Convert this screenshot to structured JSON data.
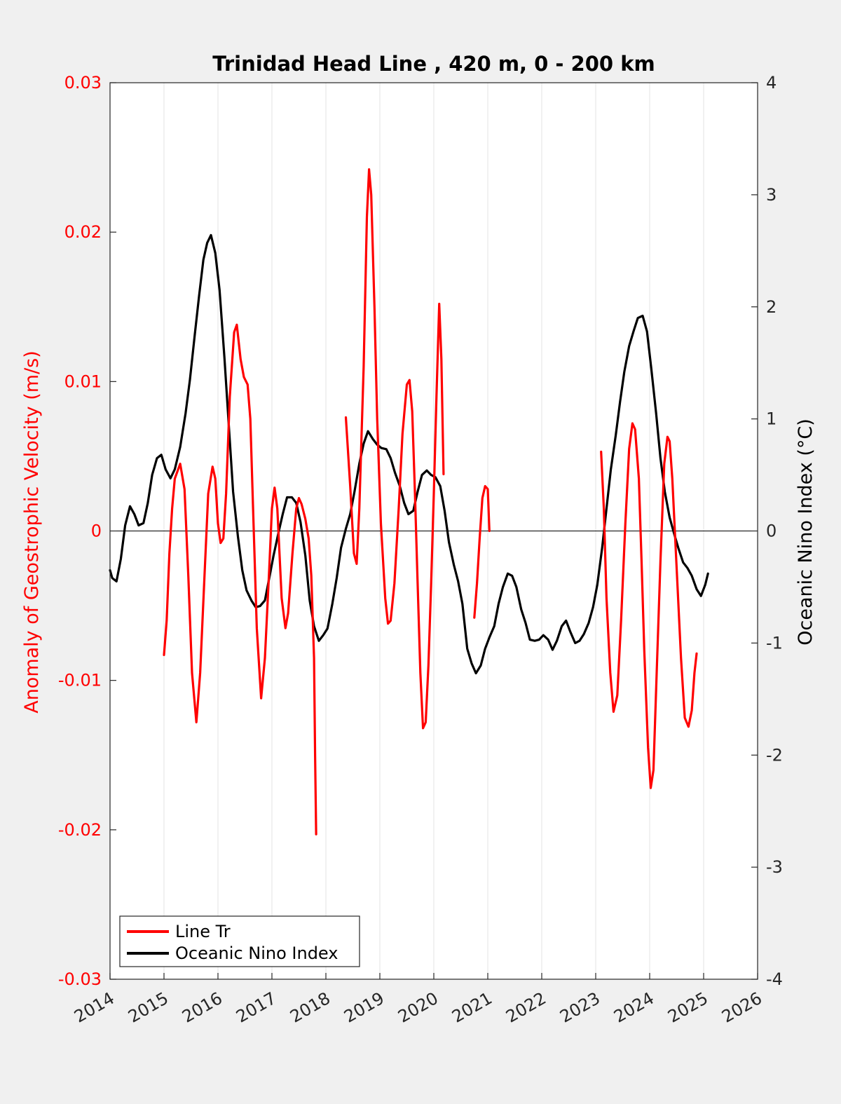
{
  "chart_data": {
    "type": "line",
    "title": "Trinidad Head Line , 420 m, 0 - 200 km",
    "xlim": [
      2014,
      2026
    ],
    "x_ticks": [
      "2014",
      "2015",
      "2016",
      "2017",
      "2018",
      "2019",
      "2020",
      "2021",
      "2022",
      "2023",
      "2024",
      "2025",
      "2026"
    ],
    "left_axis": {
      "label": "Anomaly of Geostrophic Velocity (m/s)",
      "color": "#ff0000",
      "ylim": [
        -0.03,
        0.03
      ],
      "ticks": [
        "-0.03",
        "-0.02",
        "-0.01",
        "0",
        "0.01",
        "0.02",
        "0.03"
      ]
    },
    "right_axis": {
      "label": "Oceanic Nino Index (°C)",
      "color": "#000000",
      "ylim": [
        -4,
        4
      ],
      "ticks": [
        "-4",
        "-3",
        "-2",
        "-1",
        "0",
        "1",
        "2",
        "3",
        "4"
      ]
    },
    "grid": "vertical",
    "legend": {
      "position": "bottom-left",
      "entries": [
        {
          "label": "Line Tr",
          "color": "#ff0000"
        },
        {
          "label": "Oceanic Nino Index",
          "color": "#000000"
        }
      ]
    },
    "series": [
      {
        "name": "Line Tr",
        "axis": "left",
        "color": "#ff0000",
        "segments": [
          [
            [
              2015.0,
              -0.0083
            ],
            [
              2015.05,
              -0.006
            ],
            [
              2015.1,
              -0.0015
            ],
            [
              2015.15,
              0.0015
            ],
            [
              2015.2,
              0.0035
            ],
            [
              2015.3,
              0.0045
            ],
            [
              2015.38,
              0.0028
            ],
            [
              2015.45,
              -0.003
            ],
            [
              2015.52,
              -0.0095
            ],
            [
              2015.6,
              -0.0128
            ],
            [
              2015.67,
              -0.0095
            ],
            [
              2015.75,
              -0.003
            ],
            [
              2015.82,
              0.0025
            ],
            [
              2015.9,
              0.0043
            ],
            [
              2015.95,
              0.0035
            ],
            [
              2016.0,
              0.0005
            ],
            [
              2016.05,
              -0.0008
            ],
            [
              2016.1,
              -0.0005
            ],
            [
              2016.15,
              0.0025
            ],
            [
              2016.22,
              0.009
            ],
            [
              2016.3,
              0.0133
            ],
            [
              2016.35,
              0.0138
            ],
            [
              2016.42,
              0.0115
            ],
            [
              2016.48,
              0.0103
            ],
            [
              2016.55,
              0.0098
            ],
            [
              2016.6,
              0.0075
            ],
            [
              2016.65,
              0.0015
            ],
            [
              2016.72,
              -0.0065
            ],
            [
              2016.8,
              -0.0112
            ],
            [
              2016.87,
              -0.0085
            ],
            [
              2016.95,
              -0.0025
            ],
            [
              2017.0,
              0.0015
            ],
            [
              2017.05,
              0.0029
            ],
            [
              2017.1,
              0.0015
            ],
            [
              2017.18,
              -0.0045
            ],
            [
              2017.25,
              -0.0065
            ],
            [
              2017.3,
              -0.0055
            ],
            [
              2017.38,
              -0.0015
            ],
            [
              2017.45,
              0.0015
            ],
            [
              2017.5,
              0.0022
            ],
            [
              2017.55,
              0.0018
            ],
            [
              2017.62,
              0.0008
            ],
            [
              2017.68,
              -0.0005
            ],
            [
              2017.73,
              -0.003
            ],
            [
              2017.78,
              -0.0085
            ],
            [
              2017.8,
              -0.015
            ],
            [
              2017.82,
              -0.0203
            ]
          ],
          [
            [
              2018.37,
              0.0076
            ],
            [
              2018.45,
              0.003
            ],
            [
              2018.52,
              -0.0015
            ],
            [
              2018.57,
              -0.0022
            ],
            [
              2018.62,
              0.0015
            ],
            [
              2018.7,
              0.011
            ],
            [
              2018.76,
              0.021
            ],
            [
              2018.8,
              0.0242
            ],
            [
              2018.84,
              0.0225
            ],
            [
              2018.9,
              0.015
            ],
            [
              2018.95,
              0.0075
            ],
            [
              2019.02,
              0.0005
            ],
            [
              2019.1,
              -0.0045
            ],
            [
              2019.15,
              -0.0062
            ],
            [
              2019.2,
              -0.006
            ],
            [
              2019.27,
              -0.0035
            ],
            [
              2019.35,
              0.0015
            ],
            [
              2019.42,
              0.0065
            ],
            [
              2019.5,
              0.0098
            ],
            [
              2019.55,
              0.0101
            ],
            [
              2019.6,
              0.008
            ],
            [
              2019.65,
              0.0025
            ],
            [
              2019.7,
              -0.0035
            ],
            [
              2019.75,
              -0.0095
            ],
            [
              2019.8,
              -0.0132
            ],
            [
              2019.85,
              -0.0128
            ],
            [
              2019.9,
              -0.009
            ],
            [
              2019.95,
              -0.0035
            ],
            [
              2020.0,
              0.0025
            ],
            [
              2020.05,
              0.009
            ],
            [
              2020.1,
              0.0152
            ],
            [
              2020.14,
              0.0115
            ],
            [
              2020.18,
              0.0038
            ]
          ],
          [
            [
              2020.75,
              -0.0058
            ],
            [
              2020.8,
              -0.0035
            ],
            [
              2020.85,
              -0.0005
            ],
            [
              2020.9,
              0.0022
            ],
            [
              2020.95,
              0.003
            ],
            [
              2021.0,
              0.0028
            ],
            [
              2021.03,
              0.0
            ]
          ],
          [
            [
              2023.1,
              0.0053
            ],
            [
              2023.15,
              0.0015
            ],
            [
              2023.2,
              -0.0045
            ],
            [
              2023.27,
              -0.0095
            ],
            [
              2023.33,
              -0.0121
            ],
            [
              2023.4,
              -0.011
            ],
            [
              2023.47,
              -0.006
            ],
            [
              2023.55,
              0.0005
            ],
            [
              2023.62,
              0.0055
            ],
            [
              2023.68,
              0.0072
            ],
            [
              2023.73,
              0.0068
            ],
            [
              2023.8,
              0.0035
            ],
            [
              2023.85,
              -0.002
            ],
            [
              2023.9,
              -0.008
            ],
            [
              2023.97,
              -0.0145
            ],
            [
              2024.02,
              -0.0172
            ],
            [
              2024.07,
              -0.016
            ],
            [
              2024.13,
              -0.0095
            ],
            [
              2024.2,
              -0.002
            ],
            [
              2024.27,
              0.0045
            ],
            [
              2024.33,
              0.0063
            ],
            [
              2024.37,
              0.006
            ],
            [
              2024.42,
              0.0035
            ],
            [
              2024.5,
              -0.0025
            ],
            [
              2024.58,
              -0.0085
            ],
            [
              2024.65,
              -0.0125
            ],
            [
              2024.72,
              -0.0131
            ],
            [
              2024.78,
              -0.012
            ],
            [
              2024.83,
              -0.0095
            ],
            [
              2024.87,
              -0.0082
            ]
          ]
        ]
      },
      {
        "name": "Oceanic Nino Index",
        "axis": "right",
        "color": "#000000",
        "segments": [
          [
            [
              2014.0,
              -0.35
            ],
            [
              2014.04,
              -0.42
            ],
            [
              2014.12,
              -0.45
            ],
            [
              2014.2,
              -0.25
            ],
            [
              2014.28,
              0.05
            ],
            [
              2014.37,
              0.22
            ],
            [
              2014.45,
              0.15
            ],
            [
              2014.53,
              0.05
            ],
            [
              2014.62,
              0.07
            ],
            [
              2014.7,
              0.25
            ],
            [
              2014.78,
              0.5
            ],
            [
              2014.87,
              0.65
            ],
            [
              2014.95,
              0.68
            ],
            [
              2015.03,
              0.55
            ],
            [
              2015.12,
              0.47
            ],
            [
              2015.2,
              0.55
            ],
            [
              2015.3,
              0.75
            ],
            [
              2015.4,
              1.05
            ],
            [
              2015.48,
              1.35
            ],
            [
              2015.57,
              1.75
            ],
            [
              2015.65,
              2.1
            ],
            [
              2015.73,
              2.42
            ],
            [
              2015.8,
              2.57
            ],
            [
              2015.87,
              2.64
            ],
            [
              2015.95,
              2.48
            ],
            [
              2016.03,
              2.15
            ],
            [
              2016.12,
              1.55
            ],
            [
              2016.2,
              0.95
            ],
            [
              2016.28,
              0.35
            ],
            [
              2016.37,
              -0.05
            ],
            [
              2016.45,
              -0.35
            ],
            [
              2016.53,
              -0.53
            ],
            [
              2016.62,
              -0.62
            ],
            [
              2016.7,
              -0.68
            ],
            [
              2016.78,
              -0.67
            ],
            [
              2016.87,
              -0.62
            ],
            [
              2016.95,
              -0.42
            ],
            [
              2017.03,
              -0.22
            ],
            [
              2017.12,
              -0.02
            ],
            [
              2017.2,
              0.15
            ],
            [
              2017.28,
              0.3
            ],
            [
              2017.37,
              0.3
            ],
            [
              2017.45,
              0.25
            ],
            [
              2017.53,
              0.08
            ],
            [
              2017.62,
              -0.22
            ],
            [
              2017.7,
              -0.62
            ],
            [
              2017.78,
              -0.85
            ],
            [
              2017.87,
              -0.98
            ],
            [
              2017.95,
              -0.93
            ],
            [
              2018.03,
              -0.87
            ],
            [
              2018.12,
              -0.65
            ],
            [
              2018.2,
              -0.42
            ],
            [
              2018.28,
              -0.15
            ],
            [
              2018.37,
              0.02
            ],
            [
              2018.45,
              0.15
            ],
            [
              2018.53,
              0.35
            ],
            [
              2018.62,
              0.6
            ],
            [
              2018.7,
              0.78
            ],
            [
              2018.78,
              0.89
            ],
            [
              2018.87,
              0.82
            ],
            [
              2018.95,
              0.77
            ],
            [
              2019.03,
              0.74
            ],
            [
              2019.12,
              0.73
            ],
            [
              2019.2,
              0.65
            ],
            [
              2019.28,
              0.52
            ],
            [
              2019.37,
              0.4
            ],
            [
              2019.45,
              0.25
            ],
            [
              2019.53,
              0.15
            ],
            [
              2019.62,
              0.18
            ],
            [
              2019.7,
              0.35
            ],
            [
              2019.78,
              0.5
            ],
            [
              2019.87,
              0.54
            ],
            [
              2019.95,
              0.5
            ],
            [
              2020.03,
              0.48
            ],
            [
              2020.12,
              0.4
            ],
            [
              2020.2,
              0.18
            ],
            [
              2020.28,
              -0.1
            ],
            [
              2020.37,
              -0.3
            ],
            [
              2020.45,
              -0.45
            ],
            [
              2020.53,
              -0.65
            ],
            [
              2020.62,
              -1.05
            ],
            [
              2020.7,
              -1.18
            ],
            [
              2020.78,
              -1.27
            ],
            [
              2020.87,
              -1.2
            ],
            [
              2020.95,
              -1.05
            ],
            [
              2021.03,
              -0.95
            ],
            [
              2021.12,
              -0.85
            ],
            [
              2021.2,
              -0.65
            ],
            [
              2021.28,
              -0.5
            ],
            [
              2021.37,
              -0.38
            ],
            [
              2021.45,
              -0.4
            ],
            [
              2021.53,
              -0.5
            ],
            [
              2021.62,
              -0.7
            ],
            [
              2021.7,
              -0.82
            ],
            [
              2021.78,
              -0.97
            ],
            [
              2021.87,
              -0.98
            ],
            [
              2021.95,
              -0.97
            ],
            [
              2022.03,
              -0.93
            ],
            [
              2022.12,
              -0.97
            ],
            [
              2022.2,
              -1.06
            ],
            [
              2022.28,
              -0.98
            ],
            [
              2022.37,
              -0.85
            ],
            [
              2022.45,
              -0.8
            ],
            [
              2022.53,
              -0.9
            ],
            [
              2022.62,
              -1.0
            ],
            [
              2022.7,
              -0.98
            ],
            [
              2022.78,
              -0.92
            ],
            [
              2022.87,
              -0.82
            ],
            [
              2022.95,
              -0.68
            ],
            [
              2023.03,
              -0.48
            ],
            [
              2023.12,
              -0.15
            ],
            [
              2023.2,
              0.2
            ],
            [
              2023.28,
              0.55
            ],
            [
              2023.37,
              0.85
            ],
            [
              2023.45,
              1.15
            ],
            [
              2023.53,
              1.42
            ],
            [
              2023.62,
              1.65
            ],
            [
              2023.7,
              1.78
            ],
            [
              2023.78,
              1.9
            ],
            [
              2023.87,
              1.92
            ],
            [
              2023.95,
              1.78
            ],
            [
              2024.03,
              1.45
            ],
            [
              2024.12,
              1.05
            ],
            [
              2024.2,
              0.65
            ],
            [
              2024.28,
              0.35
            ],
            [
              2024.37,
              0.12
            ],
            [
              2024.45,
              -0.02
            ],
            [
              2024.53,
              -0.15
            ],
            [
              2024.62,
              -0.28
            ],
            [
              2024.7,
              -0.33
            ],
            [
              2024.78,
              -0.4
            ],
            [
              2024.87,
              -0.52
            ],
            [
              2024.95,
              -0.58
            ],
            [
              2025.03,
              -0.48
            ],
            [
              2025.08,
              -0.38
            ]
          ]
        ]
      }
    ]
  }
}
